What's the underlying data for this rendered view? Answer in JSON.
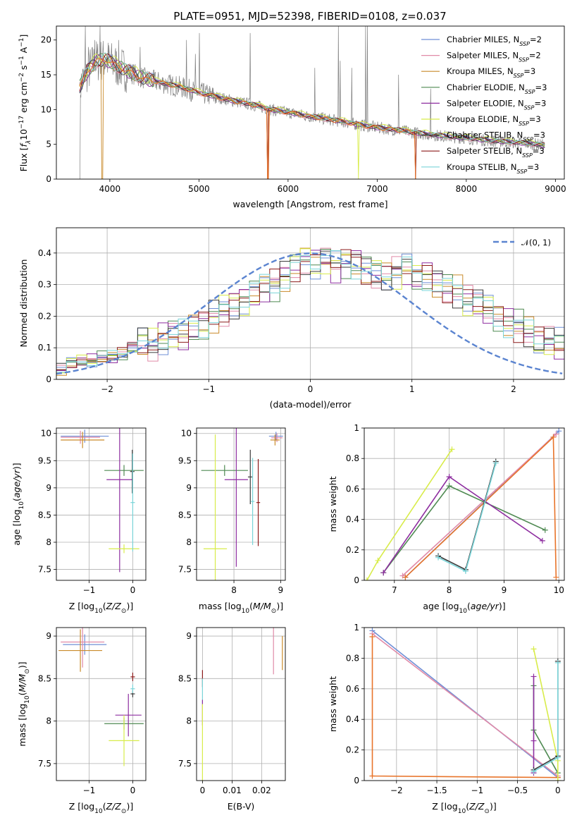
{
  "figure_title": "PLATE=0951, MJD=52398, FIBERID=0108, z=0.037",
  "colors": {
    "Chabrier MILES": "#6f8fd6",
    "Salpeter MILES": "#e08aa8",
    "Kroupa MILES": "#c98a2a",
    "Chabrier ELODIE": "#4f8a52",
    "Salpeter ELODIE": "#8e2ea0",
    "Kroupa ELODIE": "#d8ec4a",
    "Chabrier STELIB": "#3b3b3b",
    "Salpeter STELIB": "#8b1a1a",
    "Kroupa STELIB": "#7ad4d8",
    "data": "#808080",
    "highlight": "#e8742a",
    "gauss": "#5b84d0"
  },
  "chart_data": [
    {
      "id": "spectrum",
      "type": "line",
      "title": "PLATE=0951, MJD=52398, FIBERID=0108, z=0.037",
      "xlabel": "wavelength [Angstrom, rest frame]",
      "ylabel": "Flux [f_λ 10^-17 erg cm^-2 s^-1 A^-1]",
      "xlim": [
        3400,
        9100
      ],
      "ylim": [
        0,
        22
      ],
      "xticks": [
        4000,
        5000,
        6000,
        7000,
        8000,
        9000
      ],
      "yticks": [
        0,
        5,
        10,
        15,
        20
      ],
      "grid": false,
      "legend": "top-right",
      "legend_entries": [
        {
          "base": "Chabrier MILES, N",
          "sub": "SSP",
          "tail": "=2"
        },
        {
          "base": "Salpeter MILES, N",
          "sub": "SSP",
          "tail": "=2"
        },
        {
          "base": "Kroupa MILES, N",
          "sub": "SSP",
          "tail": "=3"
        },
        {
          "base": "Chabrier ELODIE, N",
          "sub": "SSP",
          "tail": "=3"
        },
        {
          "base": "Salpeter ELODIE, N",
          "sub": "SSP",
          "tail": "=3"
        },
        {
          "base": "Kroupa ELODIE, N",
          "sub": "SSP",
          "tail": "=3"
        },
        {
          "base": "Chabrier STELIB, N",
          "sub": "SSP",
          "tail": "=3"
        },
        {
          "base": "Salpeter STELIB, N",
          "sub": "SSP",
          "tail": "=3"
        },
        {
          "base": "Kroupa STELIB, N",
          "sub": "SSP",
          "tail": "=3"
        }
      ],
      "continuum": [
        [
          3660,
          13.2
        ],
        [
          3750,
          15.5
        ],
        [
          3850,
          17.0
        ],
        [
          3950,
          17.2
        ],
        [
          4050,
          16.5
        ],
        [
          4200,
          15.5
        ],
        [
          4400,
          14.4
        ],
        [
          4600,
          13.8
        ],
        [
          4800,
          13.2
        ],
        [
          5000,
          12.4
        ],
        [
          5200,
          11.8
        ],
        [
          5400,
          11.2
        ],
        [
          5600,
          10.7
        ],
        [
          5800,
          10.0
        ],
        [
          6000,
          9.6
        ],
        [
          6200,
          9.1
        ],
        [
          6400,
          8.7
        ],
        [
          6600,
          8.3
        ],
        [
          6800,
          7.8
        ],
        [
          7000,
          7.4
        ],
        [
          7200,
          7.1
        ],
        [
          7400,
          6.7
        ],
        [
          7600,
          6.4
        ],
        [
          7800,
          6.1
        ],
        [
          8000,
          5.9
        ],
        [
          8200,
          5.6
        ],
        [
          8400,
          5.4
        ],
        [
          8600,
          5.2
        ],
        [
          8800,
          5.0
        ],
        [
          8880,
          4.8
        ]
      ],
      "emission_spikes": [
        [
          3727,
          22
        ],
        [
          3760,
          19
        ],
        [
          3830,
          20
        ],
        [
          3890,
          22
        ],
        [
          4102,
          20
        ],
        [
          4340,
          19
        ],
        [
          4861,
          20
        ],
        [
          4959,
          18
        ],
        [
          5007,
          21
        ],
        [
          5577,
          21
        ],
        [
          6300,
          16
        ],
        [
          6563,
          22
        ],
        [
          6583,
          17
        ],
        [
          6716,
          16
        ],
        [
          6870,
          22
        ],
        [
          6890,
          22
        ],
        [
          7240,
          15
        ],
        [
          7600,
          13
        ]
      ],
      "model_dips": [
        [
          3915,
          0
        ],
        [
          5770,
          0
        ],
        [
          6790,
          0
        ],
        [
          7430,
          0
        ]
      ]
    },
    {
      "id": "residuals",
      "type": "bar",
      "xlabel": "(data-model)/error",
      "ylabel": "Normed distribution",
      "xlim": [
        -2.5,
        2.5
      ],
      "ylim": [
        0,
        0.48
      ],
      "xticks": [
        -2,
        -1,
        0,
        1,
        2
      ],
      "yticks": [
        0.0,
        0.1,
        0.2,
        0.3,
        0.4
      ],
      "grid": true,
      "legend": "top-right",
      "legend_label": "𝒩(0, 1)",
      "bin_width": 0.1,
      "bin_start": -2.5,
      "base_hist": [
        0.03,
        0.05,
        0.06,
        0.06,
        0.07,
        0.07,
        0.08,
        0.1,
        0.12,
        0.11,
        0.13,
        0.15,
        0.14,
        0.16,
        0.17,
        0.2,
        0.22,
        0.24,
        0.25,
        0.27,
        0.29,
        0.3,
        0.33,
        0.36,
        0.38,
        0.37,
        0.38,
        0.36,
        0.37,
        0.37,
        0.35,
        0.34,
        0.33,
        0.34,
        0.35,
        0.32,
        0.33,
        0.31,
        0.29,
        0.28,
        0.25,
        0.24,
        0.22,
        0.2,
        0.18,
        0.17,
        0.15,
        0.12,
        0.12,
        0.11,
        0.1,
        0.09,
        0.08,
        0.07,
        0.07,
        0.06,
        0.05,
        0.05,
        0.04,
        0.04
      ]
    },
    {
      "id": "age_vs_Z",
      "type": "scatter",
      "xlabel": "Z [log10(Z/Z⊙)]",
      "ylabel": "age [log10(age/yr)]",
      "xlim": [
        -1.75,
        0.3
      ],
      "ylim": [
        7.3,
        10.1
      ],
      "xticks": [
        -1,
        0
      ],
      "yticks": [
        7.5,
        8.0,
        8.5,
        9.0,
        9.5,
        10.0
      ],
      "grid": true,
      "points": [
        {
          "s": "Chabrier MILES",
          "x": -1.1,
          "xe": 0.55,
          "y": 9.95,
          "ye": 0.12
        },
        {
          "s": "Salpeter MILES",
          "x": -1.2,
          "xe": 0.45,
          "y": 9.93,
          "ye": 0.12
        },
        {
          "s": "Kroupa MILES",
          "x": -1.15,
          "xe": 0.5,
          "y": 9.88,
          "ye": 0.15
        },
        {
          "s": "Chabrier ELODIE",
          "x": -0.2,
          "xe": 0.45,
          "y": 9.32,
          "ye": 0.1
        },
        {
          "s": "Salpeter ELODIE",
          "x": -0.3,
          "xe": 0.3,
          "y": 9.15,
          "ye": 1.7
        },
        {
          "s": "Kroupa ELODIE",
          "x": -0.2,
          "xe": 0.35,
          "y": 7.88,
          "ye": 0.08
        },
        {
          "s": "Chabrier STELIB",
          "x": -0.01,
          "xe": 0.05,
          "y": 9.3,
          "ye": 0.4
        },
        {
          "s": "Kroupa STELIB",
          "x": 0.0,
          "xe": 0.05,
          "y": 8.73,
          "ye": 0.9
        }
      ]
    },
    {
      "id": "age_vs_mass",
      "type": "scatter",
      "xlabel": "mass [log10(M/M⊙)]",
      "ylabel": "",
      "xlim": [
        7.2,
        9.1
      ],
      "ylim": [
        7.3,
        10.1
      ],
      "xticks": [
        8,
        9
      ],
      "yticks": [
        7.5,
        8.0,
        8.5,
        9.0,
        9.5,
        10.0
      ],
      "grid": true,
      "points": [
        {
          "s": "Chabrier MILES",
          "x": 8.9,
          "xe": 0.15,
          "y": 9.95,
          "ye": 0.08
        },
        {
          "s": "Salpeter MILES",
          "x": 8.92,
          "xe": 0.12,
          "y": 9.92,
          "ye": 0.08
        },
        {
          "s": "Kroupa MILES",
          "x": 8.88,
          "xe": 0.1,
          "y": 9.88,
          "ye": 0.1
        },
        {
          "s": "Chabrier ELODIE",
          "x": 7.8,
          "xe": 0.5,
          "y": 9.32,
          "ye": 0.1
        },
        {
          "s": "Salpeter ELODIE",
          "x": 8.05,
          "xe": 0.25,
          "y": 9.15,
          "ye": 1.6
        },
        {
          "s": "Kroupa ELODIE",
          "x": 7.6,
          "xe": 0.25,
          "y": 7.88,
          "ye": 2.1
        },
        {
          "s": "Chabrier STELIB",
          "x": 8.35,
          "xe": 0.05,
          "y": 9.2,
          "ye": 0.5
        },
        {
          "s": "Salpeter STELIB",
          "x": 8.52,
          "xe": 0.04,
          "y": 8.73,
          "ye": 0.8
        },
        {
          "s": "Kroupa STELIB",
          "x": 8.4,
          "xe": 0.04,
          "y": 8.75,
          "ye": 0.8
        }
      ]
    },
    {
      "id": "mass_weight_vs_age",
      "type": "line",
      "xlabel": "age [log10(age/yr)]",
      "ylabel": "mass weight",
      "xlim": [
        6.45,
        10.1
      ],
      "ylim": [
        0,
        1
      ],
      "xticks": [
        7,
        8,
        9,
        10
      ],
      "yticks": [
        0.0,
        0.2,
        0.4,
        0.6,
        0.8,
        1.0
      ],
      "grid": true,
      "series": [
        {
          "s": "Chabrier MILES",
          "x": [
            7.2,
            10.0
          ],
          "y": [
            0.02,
            0.98
          ]
        },
        {
          "s": "Salpeter MILES",
          "x": [
            7.15,
            9.95
          ],
          "y": [
            0.03,
            0.96
          ]
        },
        {
          "s": "Kroupa MILES",
          "x": [
            7.2,
            9.9,
            9.95
          ],
          "y": [
            0.02,
            0.94,
            0.02
          ]
        },
        {
          "s": "Chabrier ELODIE",
          "x": [
            6.8,
            8.0,
            9.75
          ],
          "y": [
            0.05,
            0.62,
            0.33
          ]
        },
        {
          "s": "Salpeter ELODIE",
          "x": [
            6.8,
            8.0,
            9.7
          ],
          "y": [
            0.05,
            0.68,
            0.26
          ]
        },
        {
          "s": "Kroupa ELODIE",
          "x": [
            6.5,
            6.7,
            8.05
          ],
          "y": [
            0.0,
            0.13,
            0.86
          ]
        },
        {
          "s": "Chabrier STELIB",
          "x": [
            7.8,
            8.3,
            8.85
          ],
          "y": [
            0.16,
            0.07,
            0.78
          ]
        },
        {
          "s": "Kroupa STELIB",
          "x": [
            7.8,
            8.3,
            8.85
          ],
          "y": [
            0.15,
            0.06,
            0.77
          ]
        }
      ]
    },
    {
      "id": "mass_vs_Z",
      "type": "scatter",
      "xlabel": "Z [log10(Z/Z⊙)]",
      "ylabel": "mass [log10(M/M⊙)]",
      "xlim": [
        -1.75,
        0.3
      ],
      "ylim": [
        7.3,
        9.1
      ],
      "xticks": [
        -1,
        0
      ],
      "yticks": [
        7.5,
        8.0,
        8.5,
        9.0
      ],
      "grid": true,
      "points": [
        {
          "s": "Chabrier MILES",
          "x": -1.1,
          "xe": 0.5,
          "y": 8.9,
          "ye": 0.12
        },
        {
          "s": "Salpeter MILES",
          "x": -1.15,
          "xe": 0.5,
          "y": 8.93,
          "ye": 0.3
        },
        {
          "s": "Kroupa MILES",
          "x": -1.2,
          "xe": 0.5,
          "y": 8.83,
          "ye": 0.25
        },
        {
          "s": "Chabrier ELODIE",
          "x": -0.2,
          "xe": 0.45,
          "y": 7.97,
          "ye": 0.07
        },
        {
          "s": "Salpeter ELODIE",
          "x": -0.1,
          "xe": 0.3,
          "y": 8.07,
          "ye": 0.25
        },
        {
          "s": "Kroupa ELODIE",
          "x": -0.2,
          "xe": 0.35,
          "y": 7.77,
          "ye": 0.3
        },
        {
          "s": "Chabrier STELIB",
          "x": 0.0,
          "xe": 0.05,
          "y": 8.32,
          "ye": 0.04
        },
        {
          "s": "Salpeter STELIB",
          "x": 0.0,
          "xe": 0.05,
          "y": 8.52,
          "ye": 0.05
        },
        {
          "s": "Kroupa STELIB",
          "x": 0.0,
          "xe": 0.05,
          "y": 8.38,
          "ye": 0.05
        }
      ]
    },
    {
      "id": "mass_vs_EBV",
      "type": "scatter",
      "xlabel": "E(B-V)",
      "ylabel": "",
      "xlim": [
        -0.002,
        0.028
      ],
      "ylim": [
        7.3,
        9.1
      ],
      "xticks": [
        0.0,
        0.01,
        0.02
      ],
      "yticks": [
        7.5,
        8.0,
        8.5,
        9.0
      ],
      "grid": true,
      "points": [
        {
          "s": "Salpeter MILES",
          "x": 0.024,
          "xe": 0,
          "y": 8.85,
          "ye": 0.3
        },
        {
          "s": "Kroupa MILES",
          "x": 0.027,
          "xe": 0,
          "y": 8.8,
          "ye": 0.2
        },
        {
          "s": "Salpeter STELIB",
          "x": 0.0,
          "xe": 0,
          "y": 8.5,
          "ye": 0.1
        },
        {
          "s": "Kroupa STELIB",
          "x": 0.0,
          "xe": 0,
          "y": 8.35,
          "ye": 0.15
        },
        {
          "s": "Salpeter ELODIE",
          "x": 0.0,
          "xe": 0,
          "y": 8.1,
          "ye": 0.15
        },
        {
          "s": "Kroupa ELODIE",
          "x": 0.0,
          "xe": 0,
          "y": 7.75,
          "ye": 0.45
        }
      ]
    },
    {
      "id": "mass_weight_vs_Z",
      "type": "line",
      "xlabel": "Z [log10(Z/Z⊙)]",
      "ylabel": "mass weight",
      "xlim": [
        -2.4,
        0.08
      ],
      "ylim": [
        0,
        1
      ],
      "xticks": [
        -2.0,
        -1.5,
        -1.0,
        -0.5,
        0.0
      ],
      "yticks": [
        0.0,
        0.2,
        0.4,
        0.6,
        0.8,
        1.0
      ],
      "grid": true,
      "series": [
        {
          "s": "Chabrier MILES",
          "x": [
            -2.3,
            0.0
          ],
          "y": [
            0.98,
            0.02
          ]
        },
        {
          "s": "Salpeter MILES",
          "x": [
            -2.3,
            0.0
          ],
          "y": [
            0.96,
            0.03
          ]
        },
        {
          "s": "Kroupa MILES",
          "x": [
            -2.3,
            -2.3,
            0.0
          ],
          "y": [
            0.94,
            0.03,
            0.02
          ]
        },
        {
          "s": "Chabrier ELODIE",
          "x": [
            -0.3,
            -0.3,
            0.0
          ],
          "y": [
            0.62,
            0.33,
            0.05
          ]
        },
        {
          "s": "Salpeter ELODIE",
          "x": [
            -0.3,
            -0.3,
            -0.3
          ],
          "y": [
            0.68,
            0.26,
            0.05
          ]
        },
        {
          "s": "Kroupa ELODIE",
          "x": [
            -0.3,
            0.0,
            0.0
          ],
          "y": [
            0.86,
            0.13,
            0.0
          ]
        },
        {
          "s": "Chabrier STELIB",
          "x": [
            -0.3,
            0.0,
            0.0
          ],
          "y": [
            0.07,
            0.16,
            0.78
          ]
        },
        {
          "s": "Kroupa STELIB",
          "x": [
            -0.3,
            0.0,
            0.0
          ],
          "y": [
            0.06,
            0.15,
            0.77
          ]
        }
      ]
    }
  ]
}
